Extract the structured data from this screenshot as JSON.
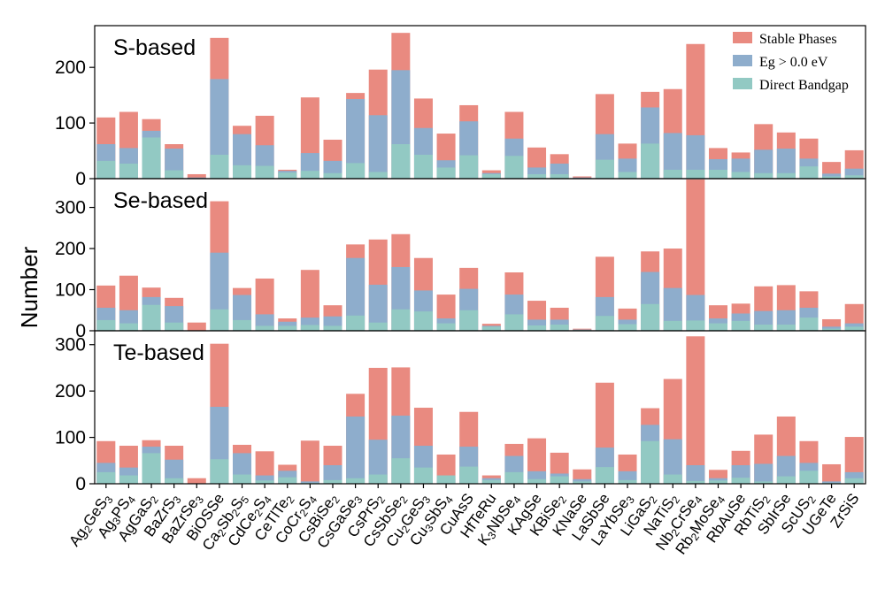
{
  "chart_data": {
    "type": "bar",
    "stacking": "overlay",
    "ylabel": "Number",
    "categories": [
      "Ag2GeS3",
      "Ag3PS4",
      "AgGaS2",
      "BaZrS3",
      "BaZrSe3",
      "BiOSSe",
      "Ca2Sb2S5",
      "CdCe2S4",
      "CeTlTe2",
      "CoCr2S4",
      "CsBiSe2",
      "CsGaSe3",
      "CsPrS2",
      "CsSbSe2",
      "Cu2GeS3",
      "Cu3SbS4",
      "CuAsS",
      "HfTeRu",
      "K3NbSe4",
      "KAgSe",
      "KBiSe2",
      "KNaSe",
      "LaSbSe",
      "LaYbSe3",
      "LiGaS2",
      "NaTiS2",
      "Nb2CrSe4",
      "Rb2MoSe4",
      "RbAuSe",
      "RbTiS2",
      "SbIrSe",
      "ScUS2",
      "UGeTe",
      "ZrSiS"
    ],
    "tick_labels": [
      {
        "parts": [
          [
            "Ag",
            ""
          ],
          [
            "2",
            "sub"
          ],
          [
            "GeS",
            ""
          ],
          [
            "3",
            "sub"
          ]
        ]
      },
      {
        "parts": [
          [
            "Ag",
            ""
          ],
          [
            "3",
            "sub"
          ],
          [
            "PS",
            ""
          ],
          [
            "4",
            "sub"
          ]
        ]
      },
      {
        "parts": [
          [
            "AgGaS",
            ""
          ],
          [
            "2",
            "sub"
          ]
        ]
      },
      {
        "parts": [
          [
            "BaZrS",
            ""
          ],
          [
            "3",
            "sub"
          ]
        ]
      },
      {
        "parts": [
          [
            "BaZrSe",
            ""
          ],
          [
            "3",
            "sub"
          ]
        ]
      },
      {
        "parts": [
          [
            "BiOSSe",
            ""
          ]
        ]
      },
      {
        "parts": [
          [
            "Ca",
            ""
          ],
          [
            "2",
            "sub"
          ],
          [
            "Sb",
            ""
          ],
          [
            "2",
            "sub"
          ],
          [
            "S",
            ""
          ],
          [
            "5",
            "sub"
          ]
        ]
      },
      {
        "parts": [
          [
            "CdCe",
            ""
          ],
          [
            "2",
            "sub"
          ],
          [
            "S",
            ""
          ],
          [
            "4",
            "sub"
          ]
        ]
      },
      {
        "parts": [
          [
            "CeTlTe",
            ""
          ],
          [
            "2",
            "sub"
          ]
        ]
      },
      {
        "parts": [
          [
            "CoCr",
            ""
          ],
          [
            "2",
            "sub"
          ],
          [
            "S",
            ""
          ],
          [
            "4",
            "sub"
          ]
        ]
      },
      {
        "parts": [
          [
            "CsBiSe",
            ""
          ],
          [
            "2",
            "sub"
          ]
        ]
      },
      {
        "parts": [
          [
            "CsGaSe",
            ""
          ],
          [
            "3",
            "sub"
          ]
        ]
      },
      {
        "parts": [
          [
            "CsPrS",
            ""
          ],
          [
            "2",
            "sub"
          ]
        ]
      },
      {
        "parts": [
          [
            "CsSbSe",
            ""
          ],
          [
            "2",
            "sub"
          ]
        ]
      },
      {
        "parts": [
          [
            "Cu",
            ""
          ],
          [
            "2",
            "sub"
          ],
          [
            "GeS",
            ""
          ],
          [
            "3",
            "sub"
          ]
        ]
      },
      {
        "parts": [
          [
            "Cu",
            ""
          ],
          [
            "3",
            "sub"
          ],
          [
            "SbS",
            ""
          ],
          [
            "4",
            "sub"
          ]
        ]
      },
      {
        "parts": [
          [
            "CuAsS",
            ""
          ]
        ]
      },
      {
        "parts": [
          [
            "HfTeRu",
            ""
          ]
        ]
      },
      {
        "parts": [
          [
            "K",
            ""
          ],
          [
            "3",
            "sub"
          ],
          [
            "NbSe",
            ""
          ],
          [
            "4",
            "sub"
          ]
        ]
      },
      {
        "parts": [
          [
            "KAgSe",
            ""
          ]
        ]
      },
      {
        "parts": [
          [
            "KBiSe",
            ""
          ],
          [
            "2",
            "sub"
          ]
        ]
      },
      {
        "parts": [
          [
            "KNaSe",
            ""
          ]
        ]
      },
      {
        "parts": [
          [
            "LaSbSe",
            ""
          ]
        ]
      },
      {
        "parts": [
          [
            "LaYbSe",
            ""
          ],
          [
            "3",
            "sub"
          ]
        ]
      },
      {
        "parts": [
          [
            "LiGaS",
            ""
          ],
          [
            "2",
            "sub"
          ]
        ]
      },
      {
        "parts": [
          [
            "NaTiS",
            ""
          ],
          [
            "2",
            "sub"
          ]
        ]
      },
      {
        "parts": [
          [
            "Nb",
            ""
          ],
          [
            "2",
            "sub"
          ],
          [
            "CrSe",
            ""
          ],
          [
            "4",
            "sub"
          ]
        ]
      },
      {
        "parts": [
          [
            "Rb",
            ""
          ],
          [
            "2",
            "sub"
          ],
          [
            "MoSe",
            ""
          ],
          [
            "4",
            "sub"
          ]
        ]
      },
      {
        "parts": [
          [
            "RbAuSe",
            ""
          ]
        ]
      },
      {
        "parts": [
          [
            "RbTiS",
            ""
          ],
          [
            "2",
            "sub"
          ]
        ]
      },
      {
        "parts": [
          [
            "SbIrSe",
            ""
          ]
        ]
      },
      {
        "parts": [
          [
            "ScUS",
            ""
          ],
          [
            "2",
            "sub"
          ]
        ]
      },
      {
        "parts": [
          [
            "UGeTe",
            ""
          ]
        ]
      },
      {
        "parts": [
          [
            "ZrSiS",
            ""
          ]
        ]
      }
    ],
    "legend": [
      {
        "name": "Stable Phases",
        "color": "#e98a80"
      },
      {
        "name": "Eg > 0.0 eV",
        "color": "#8eadcc"
      },
      {
        "name": "Direct Bandgap",
        "color": "#92c9c3"
      }
    ],
    "legend_position": "top-right of first panel",
    "panels": [
      {
        "title": "S-based",
        "ylim": [
          0,
          275
        ],
        "yticks": [
          0,
          100,
          200
        ],
        "series": [
          {
            "name": "Stable Phases",
            "values": [
              110,
              120,
              107,
              62,
              8,
              253,
              95,
              113,
              16,
              146,
              70,
              154,
              196,
              262,
              144,
              81,
              132,
              15,
              120,
              56,
              44,
              4,
              152,
              63,
              156,
              161,
              242,
              55,
              47,
              98,
              83,
              72,
              30,
              51
            ]
          },
          {
            "name": "Eg > 0.0 eV",
            "values": [
              62,
              55,
              86,
              54,
              2,
              179,
              80,
              60,
              14,
              46,
              32,
              143,
              114,
              195,
              91,
              33,
              103,
              10,
              72,
              20,
              27,
              2,
              80,
              36,
              128,
              82,
              78,
              35,
              36,
              52,
              54,
              36,
              9,
              18
            ]
          },
          {
            "name": "Direct Bandgap",
            "values": [
              32,
              27,
              74,
              15,
              0,
              43,
              24,
              23,
              11,
              14,
              10,
              28,
              12,
              62,
              43,
              20,
              42,
              8,
              41,
              8,
              8,
              0,
              34,
              12,
              63,
              16,
              16,
              16,
              12,
              10,
              10,
              22,
              4,
              6
            ]
          }
        ]
      },
      {
        "title": "Se-based",
        "ylim": [
          0,
          370
        ],
        "yticks": [
          0,
          100,
          200,
          300
        ],
        "series": [
          {
            "name": "Stable Phases",
            "values": [
              110,
              134,
              105,
              80,
              20,
              315,
              104,
              127,
              30,
              148,
              62,
              210,
              222,
              235,
              177,
              88,
              153,
              17,
              142,
              73,
              56,
              5,
              180,
              54,
              193,
              200,
              368,
              62,
              66,
              108,
              111,
              96,
              28,
              65
            ]
          },
          {
            "name": "Eg > 0.0 eV",
            "values": [
              56,
              50,
              82,
              60,
              0,
              190,
              87,
              40,
              22,
              32,
              35,
              177,
              112,
              155,
              98,
              30,
              102,
              12,
              88,
              27,
              27,
              3,
              82,
              27,
              143,
              104,
              87,
              30,
              42,
              48,
              50,
              56,
              10,
              18
            ]
          },
          {
            "name": "Direct Bandgap",
            "values": [
              26,
              18,
              63,
              20,
              0,
              52,
              26,
              12,
              12,
              14,
              12,
              37,
              20,
              52,
              47,
              18,
              50,
              10,
              40,
              13,
              15,
              2,
              36,
              16,
              65,
              24,
              25,
              18,
              24,
              15,
              15,
              32,
              5,
              10
            ]
          }
        ]
      },
      {
        "title": "Te-based",
        "ylim": [
          0,
          330
        ],
        "yticks": [
          0,
          100,
          200,
          300
        ],
        "series": [
          {
            "name": "Stable Phases",
            "values": [
              92,
              82,
              94,
              82,
              12,
              302,
              84,
              70,
              41,
              93,
              82,
              194,
              250,
              251,
              164,
              63,
              155,
              18,
              86,
              98,
              67,
              31,
              218,
              63,
              163,
              226,
              318,
              30,
              71,
              106,
              145,
              92,
              42,
              101
            ]
          },
          {
            "name": "Eg > 0.0 eV",
            "values": [
              45,
              35,
              80,
              52,
              0,
              166,
              66,
              18,
              28,
              5,
              40,
              145,
              95,
              147,
              82,
              10,
              80,
              12,
              60,
              27,
              22,
              10,
              78,
              27,
              127,
              96,
              40,
              12,
              40,
              43,
              60,
              45,
              5,
              25
            ]
          },
          {
            "name": "Direct Bandgap",
            "values": [
              25,
              18,
              66,
              12,
              0,
              53,
              20,
              7,
              14,
              2,
              8,
              12,
              20,
              55,
              35,
              18,
              37,
              8,
              25,
              10,
              16,
              5,
              36,
              8,
              92,
              20,
              6,
              7,
              13,
              5,
              16,
              28,
              2,
              12
            ]
          }
        ]
      }
    ]
  }
}
